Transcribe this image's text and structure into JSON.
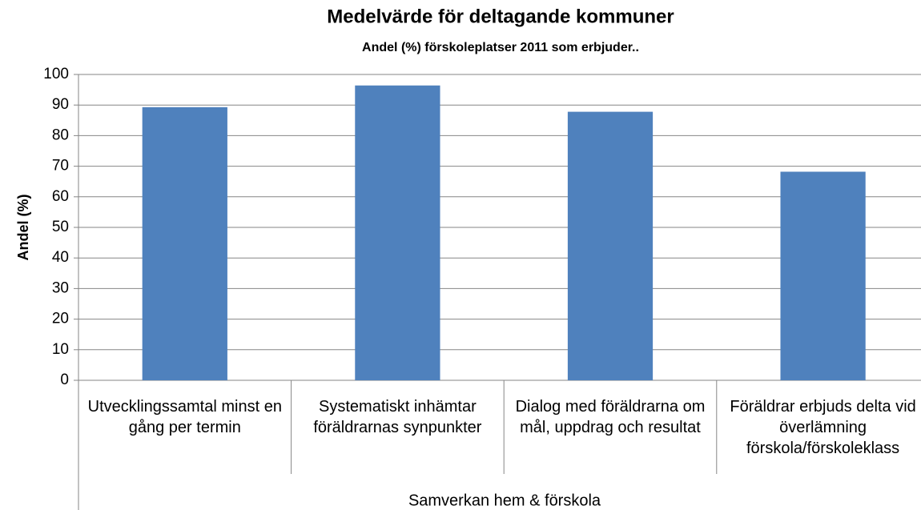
{
  "chart_data": {
    "type": "bar",
    "title": "Medelvärde för deltagande kommuner",
    "subtitle": "Andel (%) förskoleplatser 2011 som erbjuder..",
    "y_label": "Andel (%)",
    "x_label": "Samverkan hem & förskola",
    "categories": [
      "Utvecklingssamtal minst en gång per termin",
      "Systematiskt inhämtar föräldrarnas synpunkter",
      "Dialog med föräldrarna om mål, uppdrag och resultat",
      "Föräldrar erbjuds delta vid överlämning förskola/förskoleklass"
    ],
    "values": [
      89.3,
      96.4,
      87.8,
      68.2
    ],
    "color": "#4f81bd",
    "ylim": [
      0,
      100
    ],
    "yticks": [
      0,
      10,
      20,
      30,
      40,
      50,
      60,
      70,
      80,
      90,
      100
    ],
    "grid": true
  }
}
